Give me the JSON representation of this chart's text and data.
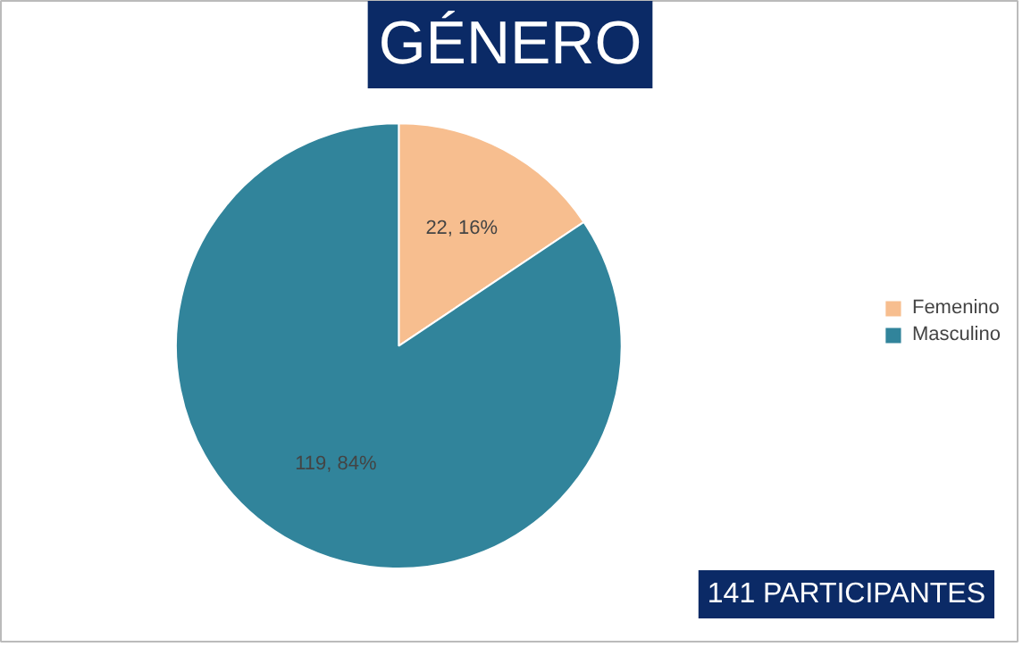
{
  "chart_data": {
    "type": "pie",
    "title": "GÉNERO",
    "categories": [
      "Femenino",
      "Masculino"
    ],
    "values": [
      22,
      119
    ],
    "colors": [
      "#f7be8f",
      "#31849b"
    ],
    "value_labels": [
      "22, 16%",
      "119, 84%"
    ],
    "legend": "right",
    "annotations": [
      "141 PARTICIPANTES"
    ]
  }
}
